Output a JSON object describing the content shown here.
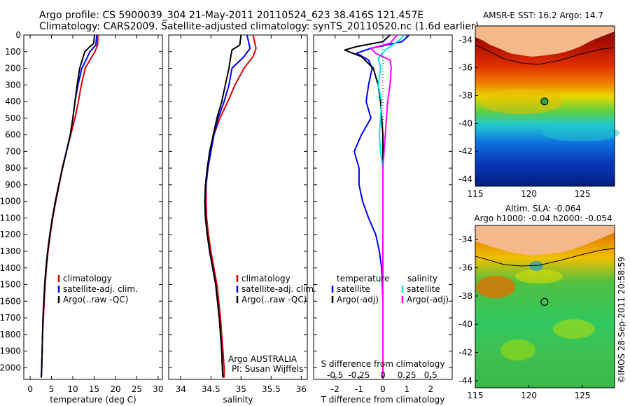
{
  "header": {
    "line1": "Argo profile: CS 5900039_304 21-May-2011 20110524_623 38.416S 121.457E",
    "line2": "Climatology: CARS2009. Satellite-adjusted climatology: synTS_20110520.nc (1.6d earlier)"
  },
  "credits": {
    "agency": "Argo AUSTRALIA",
    "pi": "PI: Susan Wijffels",
    "stamp": "©IMOS 28-Sep-2011 20:58:59"
  },
  "colors": {
    "climatology": "#e00000",
    "satellite": "#0000ff",
    "argo": "#000000",
    "satellite_sal": "#00e6e6",
    "argo_sal": "#ff00ff",
    "land": "#f5b88a",
    "axis": "#000000"
  },
  "chart_data": [
    {
      "type": "line",
      "panel": "temperature",
      "xlabel": "temperature (deg C)",
      "ylabel": "",
      "xlim": [
        -1.5,
        31
      ],
      "ylim": [
        2070,
        0
      ],
      "xticks": [
        0,
        5,
        10,
        15,
        20,
        25,
        30
      ],
      "yticks": [
        0,
        100,
        200,
        300,
        400,
        500,
        600,
        700,
        800,
        900,
        1000,
        1100,
        1200,
        1300,
        1400,
        1500,
        1600,
        1700,
        1800,
        1900,
        2000
      ],
      "legend_position": "lower-center",
      "series": [
        {
          "name": "climatology",
          "color": "#e00000",
          "points": [
            [
              15.9,
              0
            ],
            [
              15.8,
              60
            ],
            [
              15.2,
              100
            ],
            [
              14,
              150
            ],
            [
              12.9,
              200
            ],
            [
              12,
              300
            ],
            [
              11.3,
              400
            ],
            [
              10.5,
              500
            ],
            [
              9.5,
              600
            ],
            [
              8.5,
              700
            ],
            [
              7.5,
              800
            ],
            [
              6.8,
              900
            ],
            [
              6,
              1000
            ],
            [
              5.3,
              1100
            ],
            [
              4.7,
              1200
            ],
            [
              4.2,
              1300
            ],
            [
              3.8,
              1400
            ],
            [
              3.5,
              1500
            ],
            [
              3.3,
              1600
            ],
            [
              3.1,
              1700
            ],
            [
              2.9,
              1800
            ],
            [
              2.8,
              1900
            ],
            [
              2.7,
              2000
            ],
            [
              2.6,
              2060
            ]
          ]
        },
        {
          "name": "satellite-adj. clim.",
          "color": "#0000ff",
          "points": [
            [
              15.6,
              0
            ],
            [
              15.4,
              60
            ],
            [
              14,
              100
            ],
            [
              13.1,
              150
            ],
            [
              12.1,
              200
            ],
            [
              11.2,
              300
            ],
            [
              10.5,
              400
            ],
            [
              10,
              500
            ],
            [
              9.4,
              600
            ],
            [
              8.5,
              700
            ],
            [
              7.6,
              800
            ],
            [
              6.7,
              900
            ],
            [
              5.9,
              1000
            ],
            [
              5.2,
              1100
            ],
            [
              4.6,
              1200
            ],
            [
              4.1,
              1300
            ],
            [
              3.7,
              1400
            ],
            [
              3.4,
              1500
            ],
            [
              3.2,
              1600
            ],
            [
              3,
              1700
            ],
            [
              2.9,
              1800
            ],
            [
              2.8,
              1900
            ],
            [
              2.7,
              2000
            ],
            [
              2.6,
              2060
            ]
          ]
        },
        {
          "name": "Argo(..raw -QC)",
          "color": "#000000",
          "points": [
            [
              15.1,
              0
            ],
            [
              14.9,
              50
            ],
            [
              13.8,
              75
            ],
            [
              12.8,
              100
            ],
            [
              12.2,
              150
            ],
            [
              11.6,
              200
            ],
            [
              11,
              300
            ],
            [
              10.5,
              400
            ],
            [
              10,
              500
            ],
            [
              9.4,
              600
            ],
            [
              8.5,
              700
            ],
            [
              7.6,
              800
            ],
            [
              6.7,
              900
            ],
            [
              5.9,
              1000
            ],
            [
              5.2,
              1100
            ],
            [
              4.6,
              1200
            ],
            [
              4.1,
              1300
            ],
            [
              3.7,
              1400
            ],
            [
              3.4,
              1500
            ],
            [
              3.2,
              1600
            ],
            [
              3,
              1700
            ],
            [
              2.9,
              1800
            ],
            [
              2.8,
              1900
            ],
            [
              2.7,
              2000
            ],
            [
              2.6,
              2060
            ]
          ]
        }
      ]
    },
    {
      "type": "line",
      "panel": "salinity",
      "xlabel": "salinity",
      "ylabel": "",
      "xlim": [
        33.8,
        36.1
      ],
      "ylim": [
        2070,
        0
      ],
      "xticks": [
        34,
        34.5,
        35,
        35.5,
        36
      ],
      "legend_position": "lower-center",
      "series": [
        {
          "name": "climatology",
          "color": "#e00000",
          "points": [
            [
              35.2,
              0
            ],
            [
              35.25,
              80
            ],
            [
              35.2,
              130
            ],
            [
              35.05,
              200
            ],
            [
              34.9,
              300
            ],
            [
              34.78,
              400
            ],
            [
              34.65,
              500
            ],
            [
              34.55,
              600
            ],
            [
              34.5,
              700
            ],
            [
              34.45,
              800
            ],
            [
              34.42,
              900
            ],
            [
              34.42,
              1000
            ],
            [
              34.43,
              1100
            ],
            [
              34.46,
              1200
            ],
            [
              34.5,
              1300
            ],
            [
              34.55,
              1400
            ],
            [
              34.6,
              1500
            ],
            [
              34.63,
              1600
            ],
            [
              34.66,
              1700
            ],
            [
              34.68,
              1800
            ],
            [
              34.7,
              1900
            ],
            [
              34.72,
              2000
            ],
            [
              34.72,
              2060
            ]
          ]
        },
        {
          "name": "satellite-adj. clim.",
          "color": "#0000ff",
          "points": [
            [
              35.1,
              0
            ],
            [
              35.15,
              80
            ],
            [
              35.05,
              130
            ],
            [
              34.85,
              200
            ],
            [
              34.8,
              300
            ],
            [
              34.72,
              400
            ],
            [
              34.62,
              500
            ],
            [
              34.55,
              600
            ],
            [
              34.5,
              700
            ],
            [
              34.45,
              800
            ],
            [
              34.42,
              900
            ],
            [
              34.4,
              1000
            ],
            [
              34.41,
              1100
            ],
            [
              34.44,
              1200
            ],
            [
              34.48,
              1300
            ],
            [
              34.53,
              1400
            ],
            [
              34.58,
              1500
            ],
            [
              34.61,
              1600
            ],
            [
              34.64,
              1700
            ],
            [
              34.66,
              1800
            ],
            [
              34.68,
              1900
            ],
            [
              34.69,
              2000
            ],
            [
              34.7,
              2060
            ]
          ]
        },
        {
          "name": "Argo(..raw -QC)",
          "color": "#000000",
          "points": [
            [
              35,
              0
            ],
            [
              34.98,
              60
            ],
            [
              34.85,
              90
            ],
            [
              34.82,
              150
            ],
            [
              34.8,
              200
            ],
            [
              34.74,
              300
            ],
            [
              34.68,
              400
            ],
            [
              34.6,
              500
            ],
            [
              34.54,
              600
            ],
            [
              34.48,
              700
            ],
            [
              34.44,
              800
            ],
            [
              34.41,
              900
            ],
            [
              34.4,
              1000
            ],
            [
              34.41,
              1100
            ],
            [
              34.44,
              1200
            ],
            [
              34.48,
              1300
            ],
            [
              34.53,
              1400
            ],
            [
              34.58,
              1500
            ],
            [
              34.61,
              1600
            ],
            [
              34.64,
              1700
            ],
            [
              34.66,
              1800
            ],
            [
              34.68,
              1900
            ],
            [
              34.69,
              2000
            ],
            [
              34.7,
              2060
            ]
          ]
        }
      ]
    },
    {
      "type": "line",
      "panel": "difference",
      "xlabel": "T difference from climatology",
      "xlabel_top": "S difference from climatology",
      "ylabel": "",
      "xlim": [
        -2.9,
        2.9
      ],
      "ylim": [
        2070,
        0
      ],
      "xticks": [
        -2,
        -1,
        0,
        1,
        2
      ],
      "s_ticks": [
        {
          "value": -2,
          "label": "-0.5"
        },
        {
          "value": -1,
          "label": "-0.25"
        },
        {
          "value": 0,
          "label": "0"
        },
        {
          "value": 1,
          "label": "0.25"
        },
        {
          "value": 2,
          "label": "0.5"
        }
      ],
      "legend_titles": {
        "temperature": "temperature",
        "salinity": "salinity"
      },
      "series": [
        {
          "name": "satellite",
          "group": "temperature",
          "color": "#0000ff",
          "points": [
            [
              1.1,
              0
            ],
            [
              0.8,
              40
            ],
            [
              -0.5,
              80
            ],
            [
              -1.1,
              110
            ],
            [
              -0.6,
              150
            ],
            [
              -0.45,
              200
            ],
            [
              -0.6,
              300
            ],
            [
              -0.7,
              400
            ],
            [
              -0.5,
              500
            ],
            [
              -0.9,
              600
            ],
            [
              -1.2,
              700
            ],
            [
              -1.0,
              800
            ],
            [
              -1.0,
              900
            ],
            [
              -0.85,
              1000
            ],
            [
              -0.6,
              1100
            ],
            [
              -0.3,
              1200
            ],
            [
              -0.15,
              1300
            ],
            [
              -0.05,
              1400
            ],
            [
              0,
              1600
            ],
            [
              0,
              2060
            ]
          ]
        },
        {
          "name": "Argo(-adj)",
          "group": "temperature",
          "color": "#000000",
          "points": [
            [
              0.3,
              0
            ],
            [
              0,
              40
            ],
            [
              -1.1,
              70
            ],
            [
              -1.6,
              90
            ],
            [
              -0.9,
              130
            ],
            [
              -0.4,
              200
            ],
            [
              -0.2,
              300
            ],
            [
              -0.1,
              400
            ],
            [
              -0.05,
              500
            ],
            [
              0,
              600
            ],
            [
              0,
              2060
            ]
          ]
        },
        {
          "name": "satellite",
          "group": "salinity",
          "color": "#00e6e6",
          "points": [
            [
              0.9,
              0
            ],
            [
              0.7,
              30
            ],
            [
              0.1,
              90
            ],
            [
              -0.2,
              140
            ],
            [
              -0.1,
              200
            ],
            [
              -0.2,
              300
            ],
            [
              -0.05,
              400
            ],
            [
              -0.1,
              500
            ],
            [
              -0.15,
              600
            ],
            [
              -0.1,
              700
            ],
            [
              0,
              800
            ],
            [
              0,
              2060
            ]
          ]
        },
        {
          "name": "Argo(-adj)",
          "group": "salinity",
          "color": "#ff00ff",
          "points": [
            [
              0.6,
              0
            ],
            [
              0.3,
              50
            ],
            [
              -0.5,
              80
            ],
            [
              -0.3,
              110
            ],
            [
              0.3,
              150
            ],
            [
              0.35,
              200
            ],
            [
              0.3,
              300
            ],
            [
              0.2,
              400
            ],
            [
              0.15,
              500
            ],
            [
              0.1,
              600
            ],
            [
              0.05,
              700
            ],
            [
              0,
              800
            ],
            [
              0,
              2060
            ]
          ]
        }
      ]
    },
    {
      "type": "heatmap",
      "panel": "sst-map",
      "title": "AMSR-E SST: 16.2  Argo: 14.7",
      "xlim": [
        115,
        128
      ],
      "ylim": [
        -44.5,
        -33
      ],
      "xticks": [
        115,
        120,
        125
      ],
      "yticks": [
        -34,
        -36,
        -38,
        -40,
        -42,
        -44
      ],
      "argo_position": [
        121.457,
        -38.416
      ],
      "argo_marker": "green circle"
    },
    {
      "type": "heatmap",
      "panel": "sla-map",
      "title": "Altim. SLA: -0.064",
      "subtitle": "Argo h1000: -0.04 h2000: -0.054",
      "xlim": [
        115,
        128
      ],
      "ylim": [
        -44.5,
        -33
      ],
      "xticks": [
        115,
        120,
        125
      ],
      "yticks": [
        -34,
        -36,
        -38,
        -40,
        -42,
        -44
      ],
      "argo_position": [
        121.457,
        -38.416
      ],
      "argo_marker": "open circle"
    }
  ]
}
